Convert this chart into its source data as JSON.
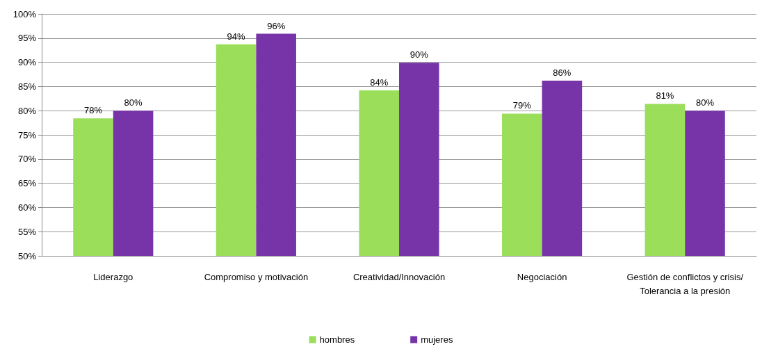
{
  "chart_data": {
    "type": "bar",
    "categories": [
      "Liderazgo",
      "Compromiso y motivación",
      "Creatividad/Innovación",
      "Negociación",
      "Gestión de conflictos y crisis/Tolerancia a la presión"
    ],
    "series": [
      {
        "name": "hombres",
        "color": "#9ade5a",
        "values": [
          78.4,
          93.7,
          84.2,
          79.4,
          81.4
        ],
        "value_labels": [
          "78%",
          "94%",
          "84%",
          "79%",
          "81%"
        ]
      },
      {
        "name": "mujeres",
        "color": "#7734a8",
        "values": [
          80,
          95.9,
          89.9,
          86.2,
          80
        ],
        "value_labels": [
          "80%",
          "96%",
          "90%",
          "86%",
          "80%"
        ]
      }
    ],
    "ylim": [
      50,
      100
    ],
    "yticks": [
      {
        "value": 50,
        "label": "50%"
      },
      {
        "value": 55,
        "label": "55%"
      },
      {
        "value": 60,
        "label": "60%"
      },
      {
        "value": 65,
        "label": "65%"
      },
      {
        "value": 70,
        "label": "70%"
      },
      {
        "value": 75,
        "label": "75%"
      },
      {
        "value": 80,
        "label": "80%"
      },
      {
        "value": 85,
        "label": "85%"
      },
      {
        "value": 90,
        "label": "90%"
      },
      {
        "value": 95,
        "label": "95%"
      },
      {
        "value": 100,
        "label": "100%"
      }
    ],
    "grid": "y",
    "legend": "bottom"
  }
}
